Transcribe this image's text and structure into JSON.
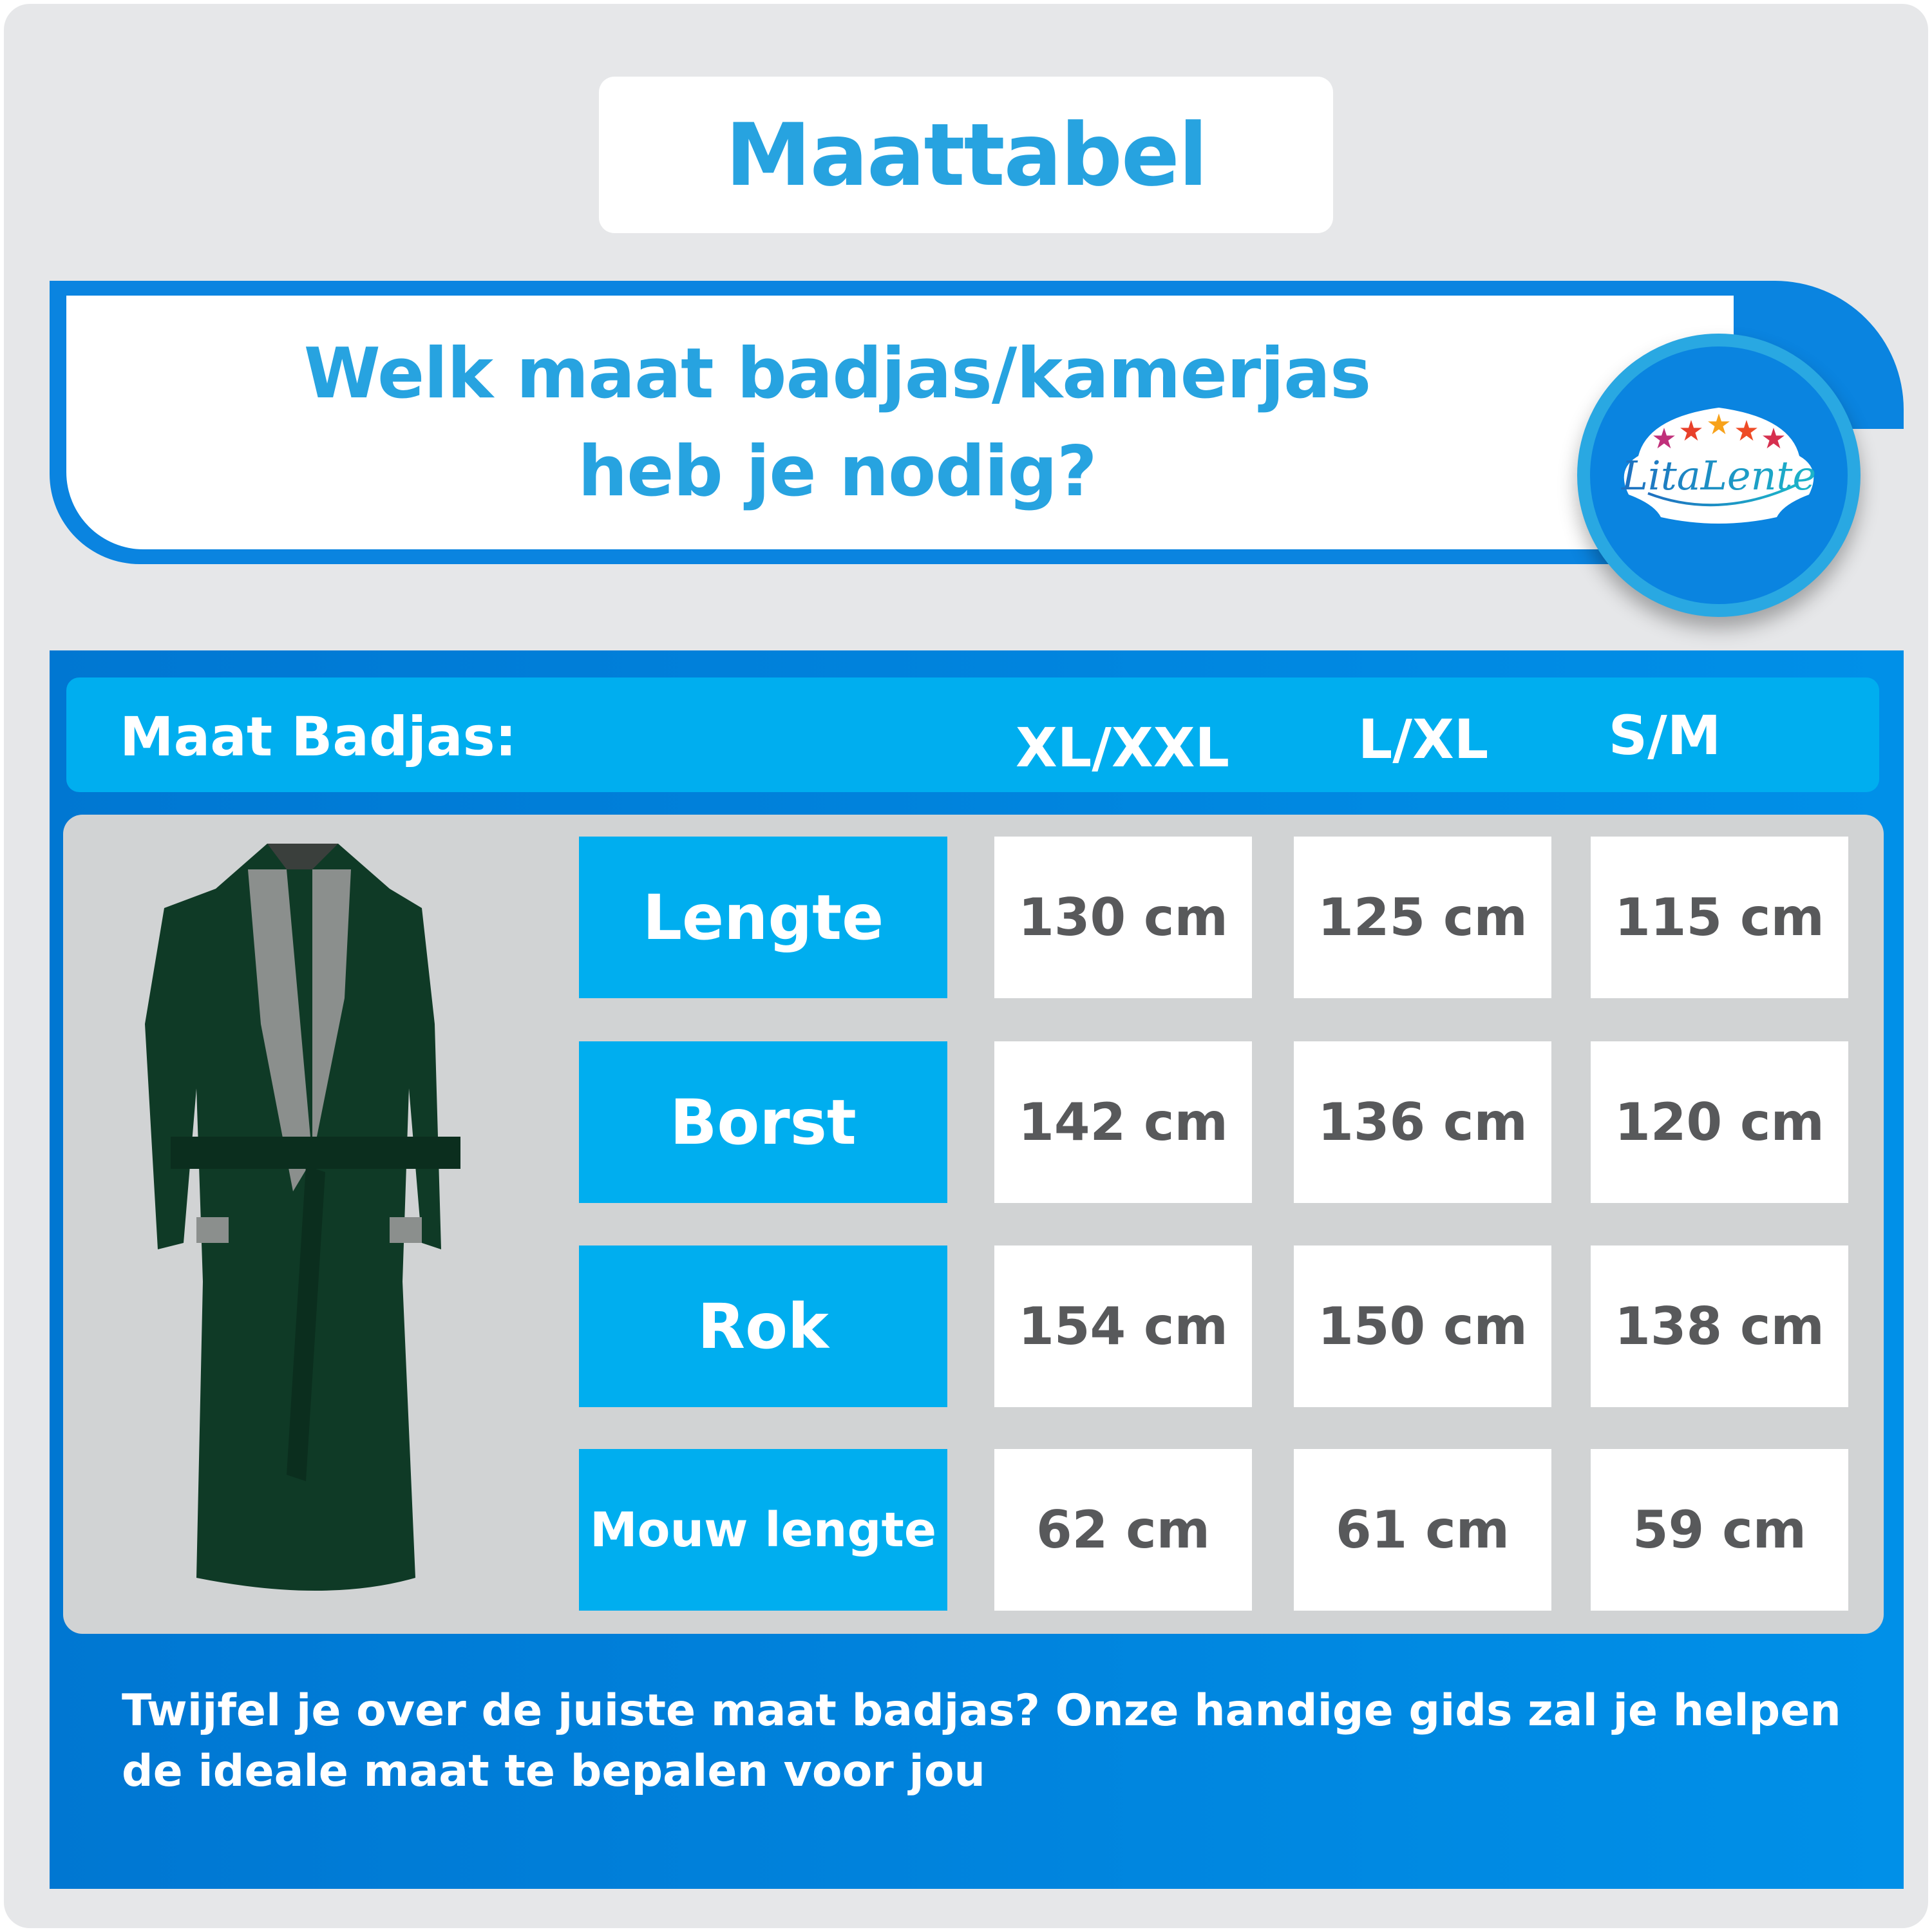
{
  "title": "Maattabel",
  "question": {
    "line1": "Welk maat badjas/kamerjas",
    "line2": "heb je nodig?"
  },
  "logo": {
    "text": "LitaLente",
    "stars": 5,
    "icon": "five-stars-logo"
  },
  "table": {
    "header_label": "Maat Badjas:",
    "sizes": [
      "XL/XXL",
      "L/XL",
      "S/M"
    ],
    "rows": [
      {
        "label": "Lengte",
        "values": [
          "130 cm",
          "125 cm",
          "115 cm"
        ]
      },
      {
        "label": "Borst",
        "values": [
          "142 cm",
          "136 cm",
          "120 cm"
        ]
      },
      {
        "label": "Rok",
        "values": [
          "154 cm",
          "150 cm",
          "138 cm"
        ]
      },
      {
        "label": "Mouw lengte",
        "values": [
          "62 cm",
          "61 cm",
          "59 cm"
        ]
      }
    ]
  },
  "footer": "Twijfel je over de juiste maat badjas? Onze handige gids zal je helpen de ideale maat te bepalen voor jou",
  "colors": {
    "accent": "#27a3e0",
    "header_blue": "#00aeef",
    "panel_blue": "#0a84e0",
    "value_text": "#58595b",
    "background": "#e6e7e9",
    "robe": "#0f3a26"
  }
}
